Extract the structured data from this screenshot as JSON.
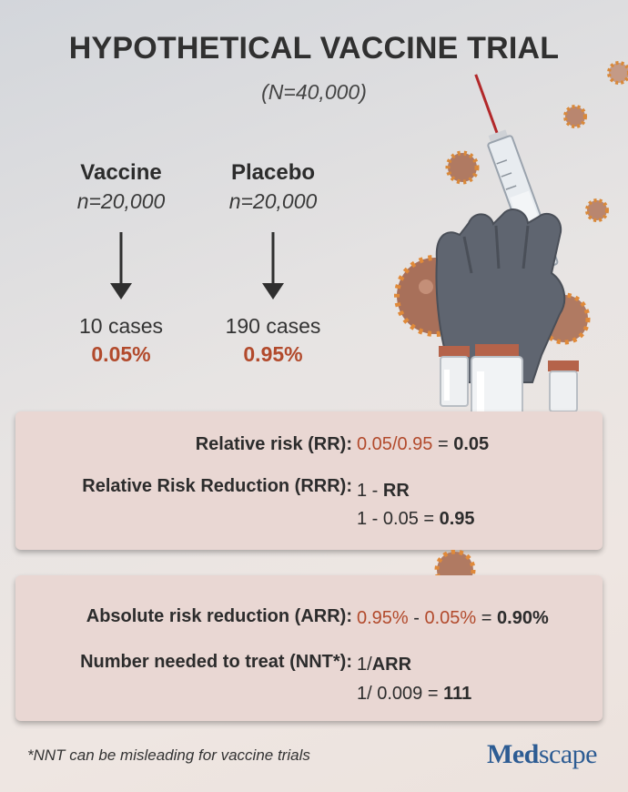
{
  "header": {
    "title": "HYPOTHETICAL VACCINE TRIAL",
    "subtitle": "(N=40,000)"
  },
  "groups": [
    {
      "name": "Vaccine",
      "n": "n=20,000",
      "cases": "10 cases",
      "percent": "0.05%"
    },
    {
      "name": "Placebo",
      "n": "n=20,000",
      "cases": "190 cases",
      "percent": "0.95%"
    }
  ],
  "box1": {
    "rr_label": "Relative risk (RR):",
    "rr_a": "0.05",
    "rr_slash": "/",
    "rr_b": "0.95",
    "rr_eq": " = ",
    "rr_result": "0.05",
    "rrr_label": "Relative Risk Reduction (RRR):",
    "rrr_formula_pre": "1 - ",
    "rrr_formula_var": "RR",
    "rrr_calc_pre": "1 - 0.05 = ",
    "rrr_result": "0.95"
  },
  "box2": {
    "arr_label": "Absolute risk reduction (ARR):",
    "arr_a": "0.95%",
    "arr_minus": " - ",
    "arr_b": "0.05%",
    "arr_eq": " = ",
    "arr_result": "0.90%",
    "nnt_label": "Number needed to treat (NNT*):",
    "nnt_formula_pre": "1/",
    "nnt_formula_var": "ARR",
    "nnt_calc_pre": "1/ 0.009 = ",
    "nnt_result": "111"
  },
  "footer": {
    "footnote": "*NNT can be misleading for vaccine trials",
    "logo_a": "Med",
    "logo_b": "scape"
  },
  "colors": {
    "accent_red": "#b24a2c",
    "box_bg": "#e9d7d3",
    "logo_blue": "#2d5c93",
    "glove": "#5f6570",
    "virus": "#b07a62"
  },
  "icons": [
    "syringe-icon",
    "gloved-hand-icon",
    "vial-icon",
    "virus-icon",
    "down-arrow-icon"
  ]
}
